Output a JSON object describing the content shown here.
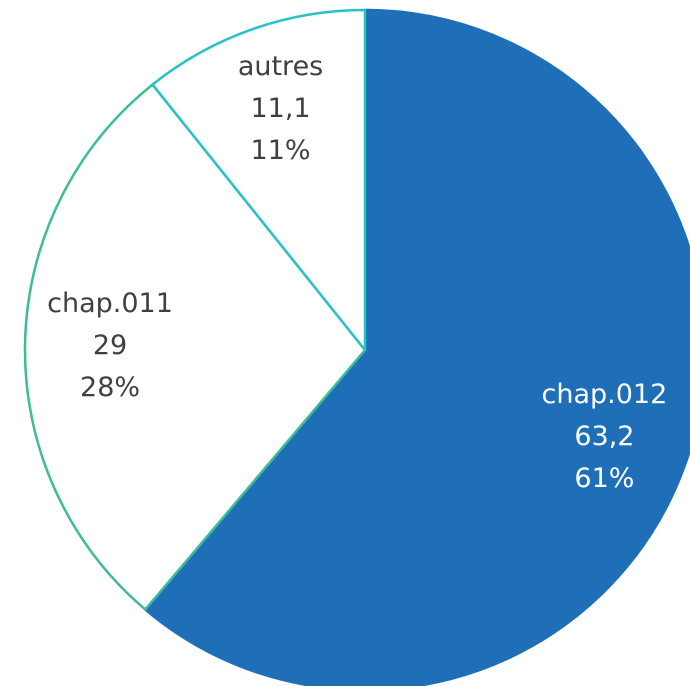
{
  "chart_data": {
    "type": "pie",
    "categories": [
      "chap.012",
      "chap.011",
      "autres"
    ],
    "values": [
      63.2,
      29,
      11.1
    ],
    "value_labels": [
      "63,2",
      "29",
      "11,1"
    ],
    "percent_labels": [
      "61%",
      "28%",
      "11%"
    ],
    "colors": [
      "#1f6fb8",
      "#ffffff",
      "#ffffff"
    ],
    "edge_colors": [
      "#1f6fb8",
      "#3dbb9a",
      "#25c2c8"
    ],
    "label_colors": [
      "#ffffff",
      "#404040",
      "#404040"
    ],
    "start_angle": 0,
    "direction": "clockwise"
  }
}
